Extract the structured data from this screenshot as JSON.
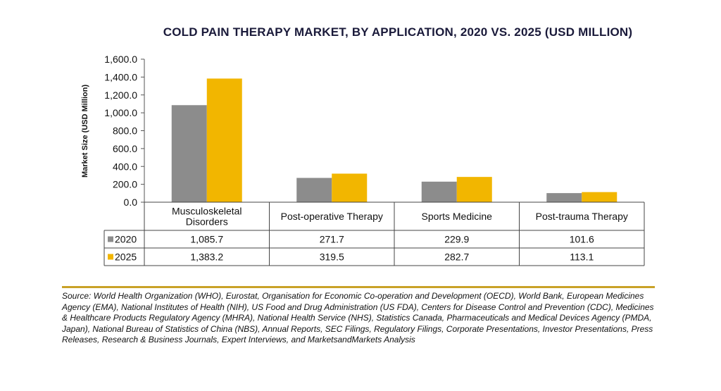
{
  "chart_data": {
    "type": "bar",
    "title": "COLD PAIN THERAPY MARKET, BY APPLICATION, 2020 VS. 2025 (USD MILLION)",
    "ylabel": "Market Size (USD Million)",
    "ylim": [
      0,
      1600
    ],
    "yticks": [
      "0.0",
      "200.0",
      "400.0",
      "600.0",
      "800.0",
      "1,000.0",
      "1,200.0",
      "1,400.0",
      "1,600.0"
    ],
    "categories": [
      [
        "Musculoskeletal",
        "Disorders"
      ],
      [
        "Post-operative Therapy"
      ],
      [
        "Sports Medicine"
      ],
      [
        "Post-trauma Therapy"
      ]
    ],
    "series": [
      {
        "name": "2020",
        "color": "#8c8c8c",
        "values": [
          1085.7,
          271.7,
          229.9,
          101.6
        ],
        "labels": [
          "1,085.7",
          "271.7",
          "229.9",
          "101.6"
        ]
      },
      {
        "name": "2025",
        "color": "#f2b600",
        "values": [
          1383.2,
          319.5,
          282.7,
          113.1
        ],
        "labels": [
          "1,383.2",
          "319.5",
          "282.7",
          "113.1"
        ]
      }
    ],
    "legend": "data-table",
    "grid": false
  },
  "source": "Source: World Health Organization (WHO), Eurostat, Organisation for Economic Co-operation and Development (OECD), World Bank, European Medicines Agency (EMA), National Institutes of Health (NIH), US Food and Drug Administration (US FDA), Centers for Disease Control and Prevention (CDC), Medicines & Healthcare Products Regulatory Agency (MHRA), National Health Service (NHS), Statistics Canada, Pharmaceuticals and Medical Devices Agency (PMDA, Japan), National Bureau of Statistics of China (NBS), Annual Reports, SEC Filings, Regulatory Filings, Corporate Presentations, Investor Presentations, Press Releases, Research & Business Journals, Expert Interviews, and MarketsandMarkets Analysis"
}
